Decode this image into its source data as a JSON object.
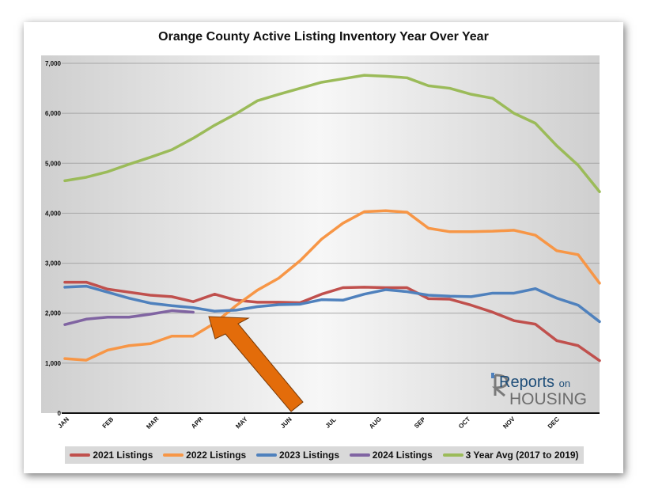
{
  "chart_data": {
    "type": "line",
    "title": "Orange County Active Listing Inventory Year Over Year",
    "xlabel": "",
    "ylabel": "",
    "x_ticks": [
      "JAN",
      "FEB",
      "MAR",
      "APR",
      "MAY",
      "JUN",
      "JUL",
      "AUG",
      "SEP",
      "OCT",
      "NOV",
      "DEC"
    ],
    "y_ticks": [
      "0",
      "1,000",
      "2,000",
      "3,000",
      "4,000",
      "5,000",
      "6,000",
      "7,000"
    ],
    "ylim": [
      0,
      7000
    ],
    "points_per_series": 26,
    "grid": "horizontal",
    "legend_position": "bottom",
    "series": [
      {
        "name": "2021 Listings",
        "color": "#c0504d",
        "values": [
          2620,
          2620,
          2480,
          2420,
          2360,
          2330,
          2230,
          2380,
          2260,
          2220,
          2220,
          2210,
          2380,
          2510,
          2520,
          2510,
          2510,
          2290,
          2280,
          2160,
          2020,
          1850,
          1780,
          1450,
          1350,
          1050
        ]
      },
      {
        "name": "2022 Listings",
        "color": "#f79646",
        "values": [
          1090,
          1060,
          1260,
          1350,
          1390,
          1540,
          1540,
          1800,
          2150,
          2460,
          2700,
          3050,
          3480,
          3800,
          4030,
          4050,
          4020,
          3700,
          3630,
          3630,
          3640,
          3660,
          3560,
          3250,
          3170,
          2600
        ]
      },
      {
        "name": "2023 Listings",
        "color": "#4f81bd",
        "values": [
          2520,
          2540,
          2420,
          2300,
          2200,
          2150,
          2110,
          2040,
          2060,
          2130,
          2170,
          2180,
          2270,
          2260,
          2380,
          2470,
          2430,
          2360,
          2340,
          2330,
          2400,
          2400,
          2490,
          2300,
          2160,
          1830
        ]
      },
      {
        "name": "2024 Listings",
        "color": "#8064a2",
        "values": [
          1770,
          1880,
          1920,
          1920,
          1980,
          2050,
          2020
        ]
      },
      {
        "name": "3 Year Avg (2017 to 2019)",
        "color": "#9bbb59",
        "values": [
          4650,
          4720,
          4830,
          4980,
          5120,
          5270,
          5500,
          5760,
          5990,
          6250,
          6380,
          6500,
          6620,
          6690,
          6760,
          6740,
          6710,
          6550,
          6500,
          6380,
          6300,
          6000,
          5800,
          5350,
          4960,
          4430
        ]
      }
    ]
  },
  "watermark": {
    "line1": "Reports",
    "line1_small": "on",
    "line2": "HOUSING"
  },
  "colors": {
    "arrow": "#e36c0a",
    "plot_gradient_edge": "#cfcfcf",
    "plot_gradient_center": "#f7f7f7"
  }
}
